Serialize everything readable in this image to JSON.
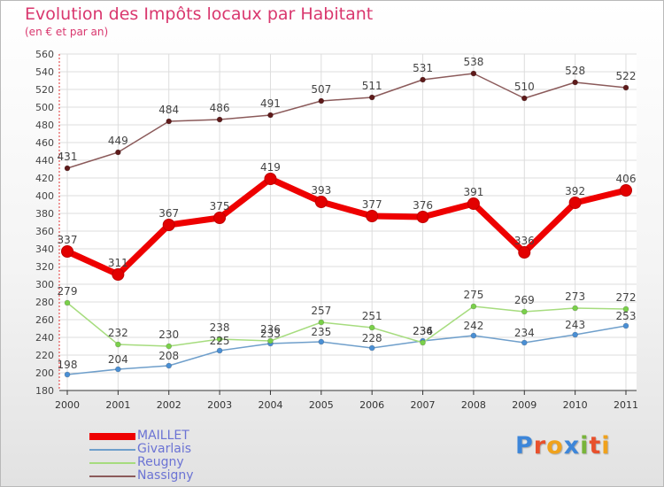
{
  "title": "Evolution des Impôts locaux par Habitant",
  "subtitle": "(en € et par an)",
  "logo": {
    "letters": [
      "P",
      "r",
      "o",
      "x",
      "i",
      "t",
      "i"
    ],
    "colors": [
      "#3d86d9",
      "#e8502c",
      "#f0a21c",
      "#3d86d9",
      "#78b43a",
      "#e8502c",
      "#f0a21c"
    ]
  },
  "chart_data": {
    "type": "line",
    "x": [
      "2000",
      "2001",
      "2002",
      "2003",
      "2004",
      "2005",
      "2006",
      "2007",
      "2008",
      "2009",
      "2010",
      "2011"
    ],
    "ylim": [
      180,
      560
    ],
    "yticks": [
      180,
      200,
      220,
      240,
      260,
      280,
      300,
      320,
      340,
      360,
      380,
      400,
      420,
      440,
      460,
      480,
      500,
      520,
      540,
      560
    ],
    "grid": true,
    "legend_position": "bottom-left",
    "series": [
      {
        "name": "MAILLET",
        "color": "#ee0000",
        "point_color": "#e20000",
        "bold": true,
        "values": [
          337,
          311,
          367,
          375,
          419,
          393,
          377,
          376,
          391,
          336,
          392,
          406
        ]
      },
      {
        "name": "Givarlais",
        "color": "#6f9fcb",
        "point_color": "#4a8fd4",
        "bold": false,
        "values": [
          198,
          204,
          208,
          225,
          233,
          235,
          228,
          236,
          242,
          234,
          243,
          253
        ]
      },
      {
        "name": "Reugny",
        "color": "#a6dc7e",
        "point_color": "#7ad04a",
        "bold": false,
        "values": [
          279,
          232,
          230,
          238,
          236,
          257,
          251,
          234,
          275,
          269,
          273,
          272
        ]
      },
      {
        "name": "Nassigny",
        "color": "#8b5a5a",
        "point_color": "#5e1a1a",
        "bold": false,
        "values": [
          431,
          449,
          484,
          486,
          491,
          507,
          511,
          531,
          538,
          510,
          528,
          522
        ]
      }
    ],
    "value_labels": {
      "Givarlais": [
        "198",
        "204",
        "208",
        "225",
        "233",
        "235",
        "228",
        "236",
        "242",
        "234",
        "243",
        "253"
      ],
      "Reugny": [
        "279",
        "232",
        "230",
        "238",
        "236",
        "257",
        "251",
        "234",
        "275",
        "269",
        "273",
        "272"
      ]
    }
  }
}
